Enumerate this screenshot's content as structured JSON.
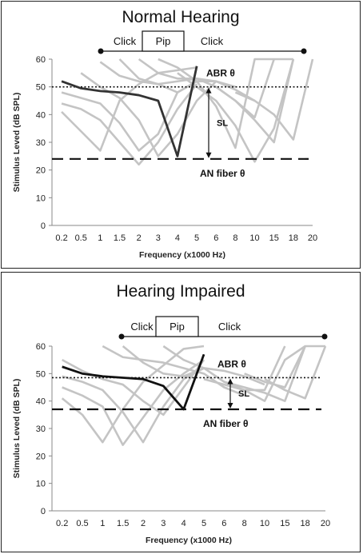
{
  "chart_data": [
    {
      "type": "line",
      "title": "Normal Hearing",
      "xlabel": "Frequency (x1000 Hz)",
      "ylabel": "Stimulus Leved (dB SPL)",
      "x_ticks": [
        "0.2",
        "0.5",
        "1",
        "1.5",
        "2",
        "3",
        "4",
        "5",
        "6",
        "8",
        "10",
        "15",
        "18",
        "20"
      ],
      "y_ticks": [
        0,
        10,
        20,
        30,
        40,
        50,
        60
      ],
      "ylim": [
        0,
        60
      ],
      "stimulus_bands": [
        "Click",
        "Pip",
        "Click"
      ],
      "abr_threshold": 50,
      "abr_label": "ABR θ",
      "an_threshold": 24,
      "an_label": "AN fiber θ",
      "sl_label": "SL",
      "highlight": {
        "x": [
          0,
          1,
          2,
          3,
          4,
          5,
          6,
          7
        ],
        "y": [
          52,
          49.5,
          48.5,
          48,
          47,
          45,
          25,
          57.5
        ]
      },
      "background_curves": [
        {
          "x": [
            0,
            1,
            2,
            3,
            4,
            5,
            6,
            7
          ],
          "y": [
            41,
            34,
            27,
            45,
            51,
            55,
            56,
            57
          ]
        },
        {
          "x": [
            0,
            1,
            2,
            3,
            4,
            5,
            6,
            7
          ],
          "y": [
            44,
            42,
            38,
            30,
            22,
            30,
            42,
            51
          ]
        },
        {
          "x": [
            0,
            1,
            2,
            3,
            4,
            5,
            6,
            7
          ],
          "y": [
            48,
            46,
            44,
            37,
            27,
            33,
            48,
            52
          ]
        },
        {
          "x": [
            1,
            2,
            3,
            4,
            5,
            6,
            7,
            8
          ],
          "y": [
            55,
            50,
            46,
            38,
            25,
            33,
            45,
            52
          ]
        },
        {
          "x": [
            2,
            3,
            4,
            5,
            6,
            7,
            8,
            9
          ],
          "y": [
            59,
            54,
            52,
            51,
            48,
            52,
            52,
            50
          ]
        },
        {
          "x": [
            3,
            4,
            5,
            6,
            7,
            8,
            9,
            10
          ],
          "y": [
            60,
            53,
            51,
            52,
            53,
            52,
            49,
            45
          ]
        },
        {
          "x": [
            4,
            5,
            6,
            7,
            8,
            9,
            10,
            11
          ],
          "y": [
            60,
            55,
            53,
            53,
            50,
            45,
            39,
            60
          ]
        },
        {
          "x": [
            5,
            6,
            7,
            8,
            9,
            10,
            11,
            12
          ],
          "y": [
            60,
            57,
            52,
            43,
            28,
            60,
            60,
            60
          ]
        },
        {
          "x": [
            6,
            7,
            8,
            9,
            10,
            11,
            12
          ],
          "y": [
            55,
            50,
            45,
            36,
            23,
            35,
            60
          ]
        },
        {
          "x": [
            8,
            9,
            10,
            11,
            12
          ],
          "y": [
            50,
            45,
            38,
            30,
            60
          ]
        },
        {
          "x": [
            9,
            10,
            11,
            12,
            13
          ],
          "y": [
            48,
            45,
            40,
            31,
            60
          ]
        }
      ]
    },
    {
      "type": "line",
      "title": "Hearing Impaired",
      "xlabel": "Frequency (x1000 Hz)",
      "ylabel": "Stimulus Leved (dB SPL)",
      "x_ticks": [
        "0.2",
        "0.5",
        "1",
        "1.5",
        "2",
        "3",
        "4",
        "5",
        "6",
        "8",
        "10",
        "15",
        "18",
        "20"
      ],
      "y_ticks": [
        0,
        10,
        20,
        30,
        40,
        50,
        60
      ],
      "ylim": [
        0,
        60
      ],
      "stimulus_bands": [
        "Click",
        "Pip",
        "Click"
      ],
      "abr_threshold": 48.5,
      "abr_label": "ABR θ",
      "an_threshold": 37,
      "an_label": "AN  fiber θ",
      "sl_label": "SL",
      "highlight": {
        "x": [
          0,
          1,
          2,
          3,
          4,
          5,
          6,
          7
        ],
        "y": [
          52.5,
          50,
          49,
          48.5,
          48,
          45.5,
          37,
          57
        ]
      },
      "background_curves": [
        {
          "x": [
            0,
            1,
            2,
            3,
            4,
            5,
            6,
            7
          ],
          "y": [
            41,
            35,
            25,
            37,
            47,
            53,
            59,
            60
          ]
        },
        {
          "x": [
            0,
            1,
            2,
            3,
            4,
            5,
            6,
            7
          ],
          "y": [
            45,
            42,
            38,
            24,
            34,
            44,
            50,
            55
          ]
        },
        {
          "x": [
            0,
            1,
            2,
            3,
            4,
            5,
            6,
            7
          ],
          "y": [
            49,
            47,
            44,
            36,
            25,
            38,
            48,
            52
          ]
        },
        {
          "x": [
            0,
            1,
            2,
            3,
            4,
            5,
            6,
            7
          ],
          "y": [
            55,
            51,
            48,
            46,
            40,
            35,
            45,
            55
          ]
        },
        {
          "x": [
            2,
            3,
            4,
            5,
            6,
            7,
            8,
            9
          ],
          "y": [
            60,
            56,
            55,
            54,
            52,
            50,
            45,
            42
          ]
        },
        {
          "x": [
            3,
            4,
            5,
            6,
            7,
            8,
            9,
            10
          ],
          "y": [
            60,
            54,
            50,
            49,
            52,
            51,
            49,
            46
          ]
        },
        {
          "x": [
            5,
            6,
            7,
            8,
            9,
            10,
            11
          ],
          "y": [
            60,
            55,
            52,
            47,
            44,
            44,
            60
          ]
        },
        {
          "x": [
            7,
            8,
            9,
            10,
            11,
            12
          ],
          "y": [
            48,
            46,
            44,
            40,
            55,
            60
          ]
        },
        {
          "x": [
            8,
            9,
            10,
            11,
            12,
            13
          ],
          "y": [
            47,
            45,
            43,
            40,
            60,
            60
          ]
        },
        {
          "x": [
            9,
            10,
            11,
            12
          ],
          "y": [
            50,
            47,
            45,
            60
          ]
        },
        {
          "x": [
            10,
            11,
            12,
            13
          ],
          "y": [
            48,
            44,
            41,
            60
          ]
        }
      ]
    }
  ]
}
